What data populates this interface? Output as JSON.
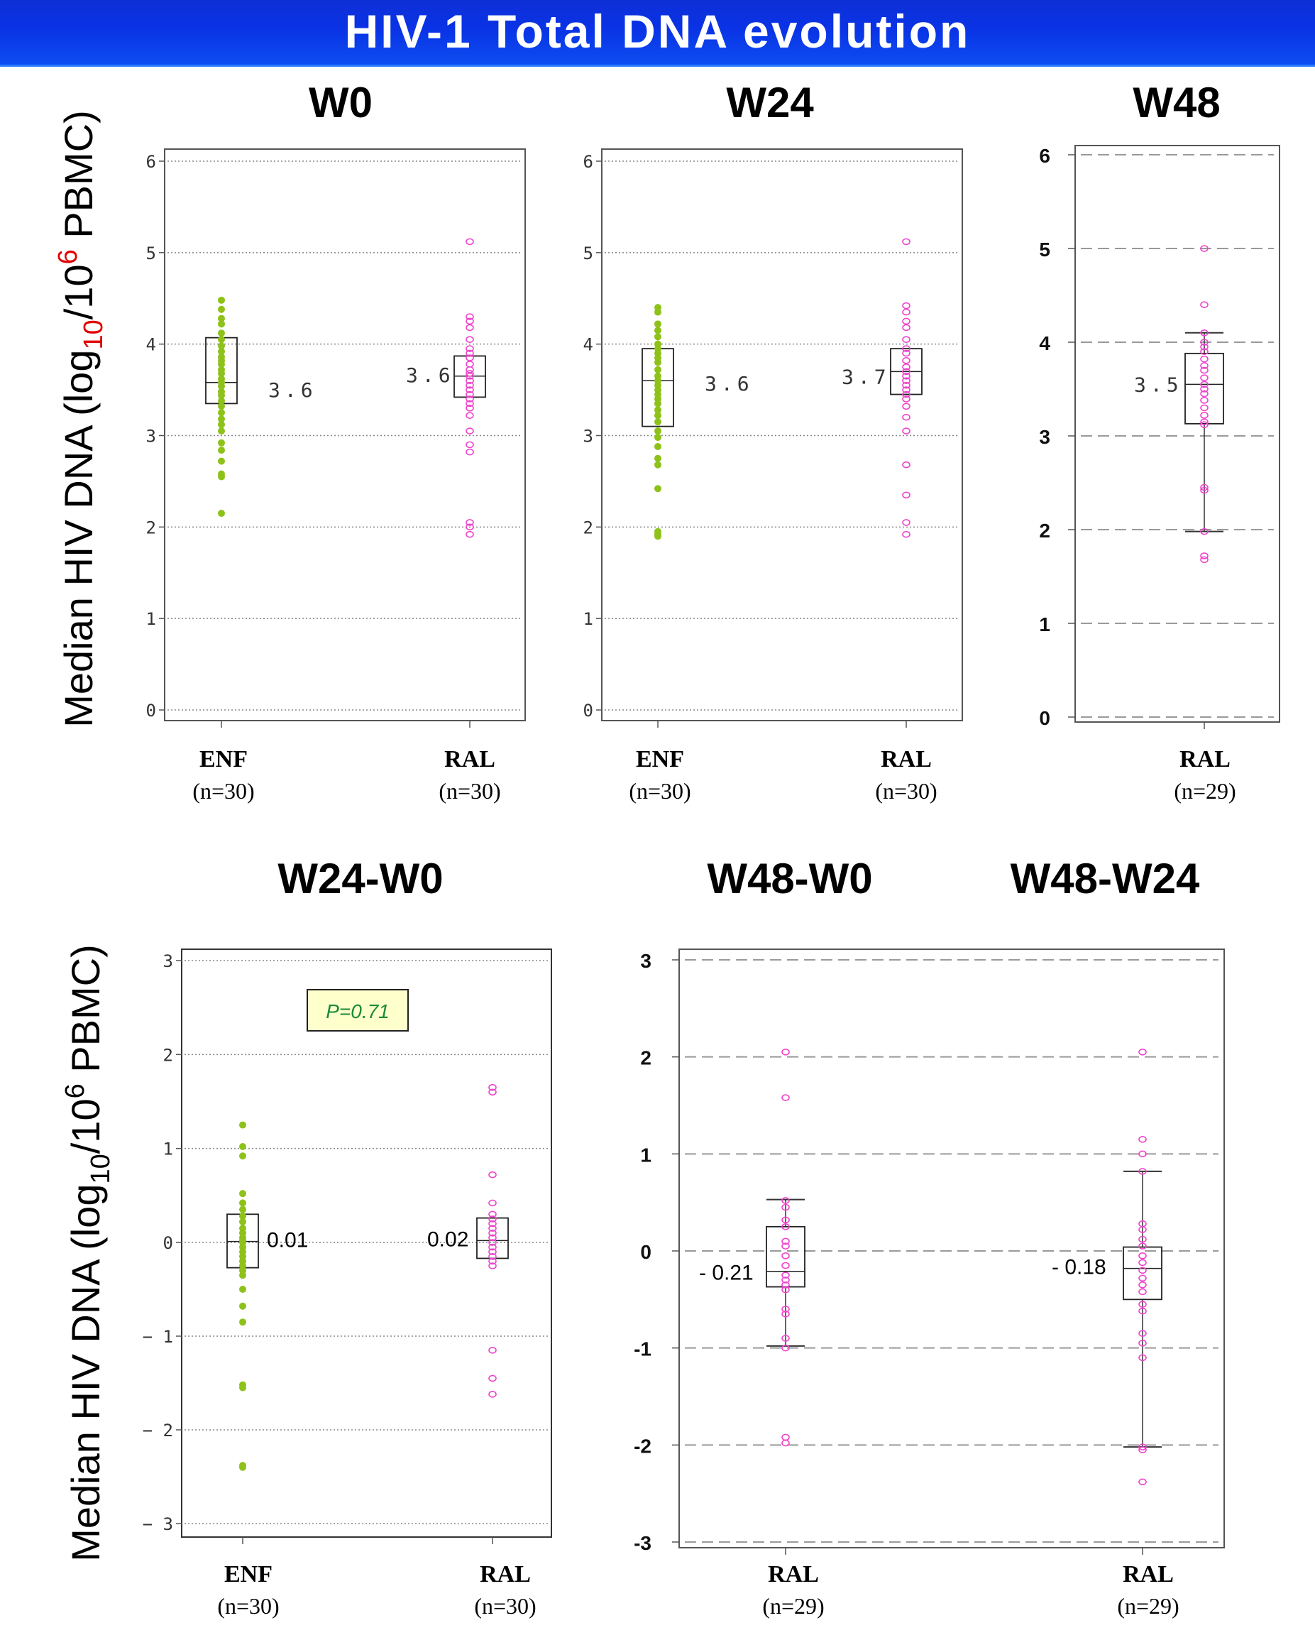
{
  "banner": {
    "title": "HIV-1 Total DNA evolution"
  },
  "colors": {
    "enf": "#8ec21a",
    "ral": "#ee44cc",
    "pbox_bg": "#ffffcc",
    "pbox_text": "#1a8a3a",
    "axis_label_red": "#e00000"
  },
  "ylabel_top": {
    "prefix": "Median HIV DNA (log",
    "sub": "10",
    "mid": "/10",
    "sup": "6",
    "suffix": " PBMC)"
  },
  "ylabel_bottom": {
    "prefix": "Median HIV DNA (log",
    "sub": "10",
    "mid": "/10",
    "sup": "6",
    "suffix": " PBMC)"
  },
  "chart_data": [
    {
      "id": "w0",
      "title": "W0",
      "type": "box-strip",
      "ylim": [
        0,
        6
      ],
      "ticks": [
        "0",
        "1",
        "2",
        "3",
        "4",
        "5",
        "6"
      ],
      "groups": [
        {
          "label": "ENF",
          "n": "(n=30)",
          "color": "green",
          "points": [
            4.48,
            4.38,
            4.28,
            4.22,
            4.12,
            4.05,
            3.98,
            3.92,
            3.86,
            3.82,
            3.78,
            3.72,
            3.68,
            3.62,
            3.58,
            3.54,
            3.48,
            3.44,
            3.38,
            3.32,
            3.25,
            3.18,
            3.12,
            3.05,
            2.92,
            2.84,
            2.72,
            2.58,
            2.55,
            2.15
          ],
          "q1": 3.35,
          "median": 3.58,
          "q3": 4.07,
          "median_label": "3.6"
        },
        {
          "label": "RAL",
          "n": "(n=30)",
          "color": "pink",
          "points": [
            5.12,
            4.3,
            4.25,
            4.18,
            4.05,
            3.95,
            3.9,
            3.85,
            3.78,
            3.72,
            3.68,
            3.65,
            3.6,
            3.55,
            3.5,
            3.45,
            3.4,
            3.35,
            3.3,
            3.22,
            3.05,
            2.9,
            2.82,
            2.05,
            2.0,
            1.92
          ],
          "q1": 3.42,
          "median": 3.65,
          "q3": 3.87,
          "median_label": "3.6"
        }
      ]
    },
    {
      "id": "w24",
      "title": "W24",
      "type": "box-strip",
      "ylim": [
        0,
        6
      ],
      "ticks": [
        "0",
        "1",
        "2",
        "3",
        "4",
        "5",
        "6"
      ],
      "groups": [
        {
          "label": "ENF",
          "n": "(n=30)",
          "color": "green",
          "points": [
            4.4,
            4.35,
            4.22,
            4.15,
            4.08,
            4.0,
            3.95,
            3.9,
            3.85,
            3.8,
            3.72,
            3.65,
            3.6,
            3.55,
            3.5,
            3.45,
            3.4,
            3.35,
            3.28,
            3.22,
            3.15,
            3.05,
            2.98,
            2.88,
            2.75,
            2.68,
            2.42,
            1.95,
            1.92,
            1.9
          ],
          "q1": 3.1,
          "median": 3.6,
          "q3": 3.95,
          "median_label": "3.6"
        },
        {
          "label": "RAL",
          "n": "(n=30)",
          "color": "pink",
          "points": [
            5.12,
            4.42,
            4.35,
            4.25,
            4.18,
            4.05,
            3.95,
            3.9,
            3.82,
            3.75,
            3.7,
            3.65,
            3.6,
            3.55,
            3.5,
            3.45,
            3.4,
            3.32,
            3.2,
            3.05,
            2.68,
            2.35,
            2.05,
            1.92
          ],
          "q1": 3.45,
          "median": 3.7,
          "q3": 3.95,
          "median_label": "3.7"
        }
      ]
    },
    {
      "id": "w48",
      "title": "W48",
      "type": "box-strip",
      "ylim": [
        0,
        6
      ],
      "ticks": [
        "0",
        "1",
        "2",
        "3",
        "4",
        "5",
        "6"
      ],
      "groups": [
        {
          "label": "RAL",
          "n": "(n=29)",
          "color": "pink",
          "points": [
            5.0,
            4.4,
            4.1,
            4.0,
            3.95,
            3.9,
            3.82,
            3.75,
            3.7,
            3.62,
            3.55,
            3.5,
            3.45,
            3.38,
            3.3,
            3.22,
            3.15,
            3.12,
            2.45,
            2.42,
            1.98,
            1.72,
            1.68
          ],
          "q1": 3.13,
          "median": 3.55,
          "q3": 3.88,
          "wlow": 1.98,
          "whigh": 4.1,
          "median_label": "3.5"
        }
      ]
    },
    {
      "id": "w24w0",
      "title": "W24-W0",
      "type": "box-strip",
      "ylim": [
        -3,
        3
      ],
      "ticks": [
        "− 3",
        "− 2",
        "− 1",
        "0",
        "1",
        "2",
        "3"
      ],
      "pvalue": "P=0.71",
      "groups": [
        {
          "label": "ENF",
          "n": "(n=30)",
          "color": "green",
          "points": [
            1.25,
            1.02,
            0.92,
            0.52,
            0.42,
            0.35,
            0.28,
            0.22,
            0.15,
            0.1,
            0.05,
            0.02,
            0.0,
            -0.05,
            -0.1,
            -0.15,
            -0.2,
            -0.25,
            -0.3,
            -0.35,
            -0.5,
            -0.68,
            -0.85,
            -1.52,
            -1.55,
            -2.38,
            -2.4
          ],
          "q1": -0.27,
          "median": 0.01,
          "q3": 0.3,
          "median_label": "0.01"
        },
        {
          "label": "RAL",
          "n": "(n=30)",
          "color": "pink",
          "points": [
            1.65,
            1.6,
            0.72,
            0.42,
            0.3,
            0.25,
            0.2,
            0.15,
            0.1,
            0.05,
            0.0,
            -0.05,
            -0.1,
            -0.15,
            -0.2,
            -0.25,
            -1.15,
            -1.45,
            -1.62
          ],
          "q1": -0.17,
          "median": 0.02,
          "q3": 0.26,
          "median_label": "0.02"
        }
      ]
    },
    {
      "id": "w48",
      "title": "W48-W0",
      "title2": "W48-W24",
      "type": "box-strip",
      "ylim": [
        -3,
        3
      ],
      "ticks": [
        "-3",
        "-2",
        "-1",
        "0",
        "1",
        "2",
        "3"
      ],
      "groups": [
        {
          "label": "RAL",
          "n": "(n=29)",
          "color": "pink",
          "points": [
            2.05,
            1.58,
            0.52,
            0.45,
            0.32,
            0.25,
            0.1,
            0.05,
            -0.05,
            -0.15,
            -0.25,
            -0.3,
            -0.35,
            -0.4,
            -0.6,
            -0.65,
            -0.9,
            -1.0,
            -1.92,
            -1.98
          ],
          "q1": -0.37,
          "median": -0.21,
          "q3": 0.25,
          "wlow": -0.98,
          "whigh": 0.53,
          "median_label": "- 0.21"
        },
        {
          "label": "RAL",
          "n": "(n=29)",
          "color": "pink",
          "points": [
            2.05,
            1.15,
            1.0,
            0.82,
            0.28,
            0.22,
            0.12,
            0.05,
            -0.05,
            -0.12,
            -0.2,
            -0.28,
            -0.35,
            -0.42,
            -0.55,
            -0.62,
            -0.85,
            -0.95,
            -1.1,
            -2.02,
            -2.05,
            -2.38
          ],
          "q1": -0.5,
          "median": -0.18,
          "q3": 0.04,
          "wlow": -2.02,
          "whigh": 0.82,
          "median_label": "- 0.18"
        }
      ]
    }
  ]
}
